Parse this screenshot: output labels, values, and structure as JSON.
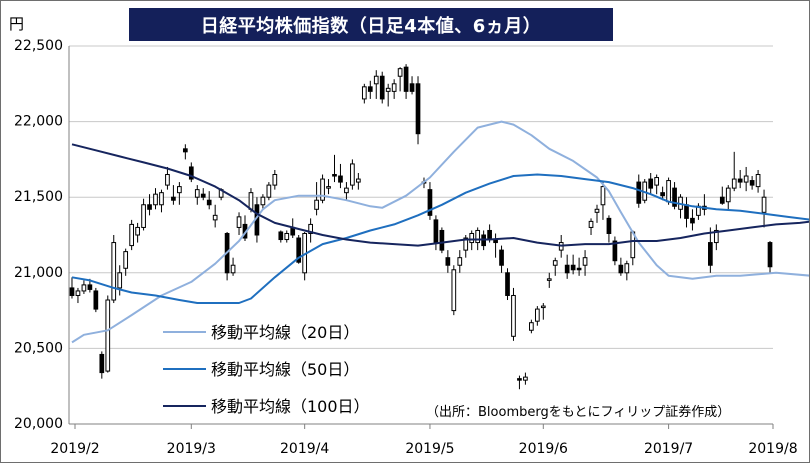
{
  "title": "日経平均株価指数（日足4本値、6ヵ月）",
  "unit_label": "円",
  "source": "（出所：Bloombergをもとにフィリップ証券作成）",
  "colors": {
    "title_bg": "#14205a",
    "ma20": "#8fb0dd",
    "ma50": "#1f6fbf",
    "ma100": "#16255e",
    "candle": "#000000",
    "grid": "#c8c8c8"
  },
  "chart_data": {
    "type": "candlestick",
    "title": "日経平均株価指数（日足4本値、6ヵ月）",
    "ylabel": "円",
    "ylim": [
      20000,
      22500
    ],
    "y_ticks": [
      "20,000",
      "20,500",
      "21,000",
      "21,500",
      "22,000",
      "22,500"
    ],
    "x_ticks": [
      "2019/2",
      "2019/3",
      "2019/4",
      "2019/5",
      "2019/6",
      "2019/7",
      "2019/8"
    ],
    "grid": true,
    "legend": [
      "移動平均線（20日）",
      "移動平均線（50日）",
      "移動平均線（100日）"
    ],
    "candles": [
      [
        20900,
        20970,
        20830,
        20850
      ],
      [
        20850,
        20900,
        20800,
        20880
      ],
      [
        20880,
        20950,
        20860,
        20920
      ],
      [
        20920,
        20960,
        20870,
        20890
      ],
      [
        20880,
        20900,
        20740,
        20760
      ],
      [
        20460,
        20480,
        20300,
        20340
      ],
      [
        20350,
        20850,
        20340,
        20820
      ],
      [
        20820,
        21250,
        20800,
        21200
      ],
      [
        20900,
        21050,
        20850,
        21000
      ],
      [
        21030,
        21160,
        20980,
        21140
      ],
      [
        21180,
        21350,
        21150,
        21320
      ],
      [
        21250,
        21330,
        21200,
        21300
      ],
      [
        21300,
        21490,
        21280,
        21450
      ],
      [
        21450,
        21520,
        21380,
        21420
      ],
      [
        21450,
        21560,
        21420,
        21520
      ],
      [
        21450,
        21550,
        21400,
        21530
      ],
      [
        21580,
        21700,
        21550,
        21650
      ],
      [
        21500,
        21580,
        21450,
        21480
      ],
      [
        21530,
        21600,
        21450,
        21570
      ],
      [
        21820,
        21850,
        21750,
        21800
      ],
      [
        21700,
        21730,
        21600,
        21620
      ],
      [
        21500,
        21580,
        21450,
        21550
      ],
      [
        21520,
        21560,
        21480,
        21500
      ],
      [
        21480,
        21540,
        21420,
        21450
      ],
      [
        21350,
        21450,
        21300,
        21380
      ],
      [
        21500,
        21560,
        21480,
        21550
      ],
      [
        21260,
        21270,
        20950,
        21000
      ],
      [
        21000,
        21100,
        20980,
        21050
      ],
      [
        21300,
        21400,
        21250,
        21370
      ],
      [
        21320,
        21380,
        21210,
        21230
      ],
      [
        21420,
        21560,
        21400,
        21530
      ],
      [
        21450,
        21500,
        21200,
        21250
      ],
      [
        21450,
        21520,
        21420,
        21500
      ],
      [
        21500,
        21600,
        21480,
        21580
      ],
      [
        21580,
        21680,
        21550,
        21650
      ],
      [
        21270,
        21280,
        21200,
        21220
      ],
      [
        21220,
        21280,
        21200,
        21260
      ],
      [
        21300,
        21360,
        21230,
        21250
      ],
      [
        21230,
        21250,
        21060,
        21070
      ],
      [
        21000,
        21270,
        20950,
        21260
      ],
      [
        21260,
        21360,
        21200,
        21320
      ],
      [
        21420,
        21600,
        21380,
        21480
      ],
      [
        21480,
        21650,
        21460,
        21620
      ],
      [
        21560,
        21620,
        21520,
        21570
      ],
      [
        21650,
        21780,
        21600,
        21640
      ],
      [
        21640,
        21720,
        21560,
        21600
      ],
      [
        21530,
        21600,
        21480,
        21560
      ],
      [
        21580,
        21750,
        21550,
        21720
      ],
      [
        21600,
        21660,
        21550,
        21620
      ],
      [
        22150,
        22250,
        22120,
        22230
      ],
      [
        22230,
        22270,
        22150,
        22200
      ],
      [
        22250,
        22340,
        22150,
        22300
      ],
      [
        22300,
        22330,
        22120,
        22150
      ],
      [
        22200,
        22250,
        22100,
        22220
      ],
      [
        22200,
        22280,
        22150,
        22250
      ],
      [
        22300,
        22360,
        22200,
        22350
      ],
      [
        22360,
        22380,
        22150,
        22200
      ],
      [
        22250,
        22300,
        22180,
        22200
      ],
      [
        22250,
        22300,
        21850,
        21920
      ],
      [
        21600,
        21630,
        21560,
        21600
      ],
      [
        21550,
        21600,
        21350,
        21380
      ],
      [
        21350,
        21380,
        21150,
        21200
      ],
      [
        21280,
        21300,
        21130,
        21150
      ],
      [
        21100,
        21150,
        21000,
        21050
      ],
      [
        20750,
        21050,
        20720,
        21020
      ],
      [
        21050,
        21150,
        21000,
        21100
      ],
      [
        21150,
        21250,
        21100,
        21230
      ],
      [
        21200,
        21280,
        21150,
        21260
      ],
      [
        21200,
        21300,
        21150,
        21280
      ],
      [
        21250,
        21280,
        21150,
        21180
      ],
      [
        21280,
        21320,
        21200,
        21230
      ],
      [
        21220,
        21260,
        21100,
        21200
      ],
      [
        21150,
        21180,
        21000,
        21050
      ],
      [
        21000,
        21030,
        20820,
        20850
      ],
      [
        20580,
        20900,
        20550,
        20850
      ],
      [
        20300,
        20320,
        20230,
        20290
      ],
      [
        20290,
        20340,
        20260,
        20310
      ],
      [
        20620,
        20690,
        20600,
        20670
      ],
      [
        20680,
        20780,
        20650,
        20760
      ],
      [
        20770,
        20800,
        20690,
        20780
      ],
      [
        20950,
        21000,
        20900,
        20960
      ],
      [
        21050,
        21100,
        20980,
        21080
      ],
      [
        21150,
        21250,
        21100,
        21200
      ],
      [
        21050,
        21120,
        20960,
        21000
      ],
      [
        21050,
        21120,
        20990,
        21020
      ],
      [
        21030,
        21100,
        20980,
        21020
      ],
      [
        21050,
        21150,
        20980,
        21100
      ],
      [
        21300,
        21360,
        21250,
        21340
      ],
      [
        21400,
        21450,
        21330,
        21420
      ],
      [
        21450,
        21600,
        21350,
        21570
      ],
      [
        21360,
        21380,
        21200,
        21260
      ],
      [
        21210,
        21240,
        21050,
        21080
      ],
      [
        21050,
        21100,
        20980,
        21000
      ],
      [
        21000,
        21080,
        20950,
        21060
      ],
      [
        21100,
        21280,
        21050,
        21270
      ],
      [
        21600,
        21650,
        21430,
        21460
      ],
      [
        21480,
        21620,
        21460,
        21600
      ],
      [
        21620,
        21660,
        21520,
        21560
      ],
      [
        21580,
        21650,
        21520,
        21630
      ],
      [
        21530,
        21570,
        21480,
        21510
      ],
      [
        21470,
        21630,
        21450,
        21610
      ],
      [
        21560,
        21600,
        21420,
        21440
      ],
      [
        21420,
        21520,
        21360,
        21500
      ],
      [
        21450,
        21500,
        21300,
        21360
      ],
      [
        21360,
        21420,
        21280,
        21330
      ],
      [
        21380,
        21460,
        21350,
        21440
      ],
      [
        21440,
        21520,
        21380,
        21420
      ],
      [
        21200,
        21300,
        21000,
        21050
      ],
      [
        21200,
        21320,
        21150,
        21280
      ],
      [
        21500,
        21570,
        21450,
        21460
      ],
      [
        21470,
        21580,
        21420,
        21560
      ],
      [
        21560,
        21800,
        21540,
        21620
      ],
      [
        21620,
        21680,
        21560,
        21600
      ],
      [
        21600,
        21700,
        21540,
        21640
      ],
      [
        21610,
        21640,
        21550,
        21580
      ],
      [
        21570,
        21680,
        21530,
        21650
      ],
      [
        21400,
        21550,
        21300,
        21500
      ],
      [
        21200,
        21210,
        21000,
        21040
      ]
    ],
    "ma20": [
      [
        0,
        20540
      ],
      [
        2,
        20590
      ],
      [
        6,
        20620
      ],
      [
        10,
        20720
      ],
      [
        15,
        20850
      ],
      [
        20,
        20940
      ],
      [
        24,
        21060
      ],
      [
        28,
        21210
      ],
      [
        32,
        21420
      ],
      [
        34,
        21480
      ],
      [
        38,
        21510
      ],
      [
        42,
        21510
      ],
      [
        46,
        21480
      ],
      [
        50,
        21440
      ],
      [
        52,
        21430
      ],
      [
        56,
        21510
      ],
      [
        60,
        21630
      ],
      [
        64,
        21800
      ],
      [
        68,
        21960
      ],
      [
        72,
        22000
      ],
      [
        74,
        21980
      ],
      [
        77,
        21910
      ],
      [
        80,
        21820
      ],
      [
        84,
        21740
      ],
      [
        88,
        21630
      ],
      [
        90,
        21540
      ],
      [
        92,
        21400
      ],
      [
        95,
        21200
      ],
      [
        98,
        21050
      ],
      [
        100,
        20980
      ],
      [
        104,
        20960
      ],
      [
        108,
        20980
      ],
      [
        112,
        20980
      ],
      [
        118,
        21000
      ],
      [
        124,
        20980
      ],
      [
        130,
        21000
      ],
      [
        133,
        21040
      ],
      [
        136,
        21120
      ],
      [
        140,
        21280
      ],
      [
        143,
        21410
      ],
      [
        146,
        21480
      ],
      [
        150,
        21500
      ],
      [
        154,
        21500
      ],
      [
        158,
        21560
      ],
      [
        162,
        21570
      ],
      [
        166,
        21560
      ],
      [
        168,
        21540
      ]
    ],
    "ma50": [
      [
        0,
        20970
      ],
      [
        3,
        20950
      ],
      [
        7,
        20900
      ],
      [
        10,
        20870
      ],
      [
        14,
        20850
      ],
      [
        18,
        20820
      ],
      [
        21,
        20800
      ],
      [
        24,
        20800
      ],
      [
        28,
        20800
      ],
      [
        30,
        20830
      ],
      [
        34,
        20970
      ],
      [
        38,
        21100
      ],
      [
        42,
        21190
      ],
      [
        46,
        21230
      ],
      [
        50,
        21280
      ],
      [
        54,
        21320
      ],
      [
        58,
        21380
      ],
      [
        62,
        21450
      ],
      [
        66,
        21530
      ],
      [
        70,
        21590
      ],
      [
        74,
        21640
      ],
      [
        78,
        21650
      ],
      [
        82,
        21640
      ],
      [
        86,
        21620
      ],
      [
        90,
        21600
      ],
      [
        94,
        21560
      ],
      [
        97,
        21520
      ],
      [
        100,
        21470
      ],
      [
        104,
        21440
      ],
      [
        108,
        21420
      ],
      [
        112,
        21410
      ],
      [
        116,
        21390
      ],
      [
        120,
        21370
      ],
      [
        124,
        21350
      ],
      [
        128,
        21340
      ],
      [
        132,
        21330
      ],
      [
        136,
        21340
      ],
      [
        140,
        21360
      ],
      [
        144,
        21350
      ],
      [
        148,
        21320
      ],
      [
        152,
        21290
      ],
      [
        156,
        21270
      ],
      [
        160,
        21270
      ],
      [
        164,
        21280
      ],
      [
        168,
        21310
      ]
    ],
    "ma100": [
      [
        0,
        21850
      ],
      [
        4,
        21810
      ],
      [
        8,
        21770
      ],
      [
        12,
        21730
      ],
      [
        16,
        21690
      ],
      [
        20,
        21640
      ],
      [
        24,
        21570
      ],
      [
        28,
        21480
      ],
      [
        31,
        21390
      ],
      [
        34,
        21330
      ],
      [
        38,
        21290
      ],
      [
        42,
        21250
      ],
      [
        46,
        21220
      ],
      [
        50,
        21200
      ],
      [
        54,
        21190
      ],
      [
        58,
        21180
      ],
      [
        62,
        21200
      ],
      [
        66,
        21220
      ],
      [
        70,
        21220
      ],
      [
        74,
        21230
      ],
      [
        78,
        21200
      ],
      [
        82,
        21180
      ],
      [
        86,
        21190
      ],
      [
        90,
        21190
      ],
      [
        94,
        21210
      ],
      [
        98,
        21210
      ],
      [
        102,
        21230
      ],
      [
        106,
        21260
      ],
      [
        110,
        21280
      ],
      [
        114,
        21300
      ],
      [
        118,
        21320
      ],
      [
        122,
        21330
      ],
      [
        126,
        21350
      ],
      [
        130,
        21350
      ],
      [
        134,
        21360
      ],
      [
        138,
        21360
      ],
      [
        142,
        21380
      ],
      [
        146,
        21410
      ],
      [
        150,
        21420
      ],
      [
        154,
        21430
      ],
      [
        158,
        21440
      ],
      [
        162,
        21440
      ],
      [
        166,
        21450
      ],
      [
        168,
        21440
      ]
    ]
  }
}
